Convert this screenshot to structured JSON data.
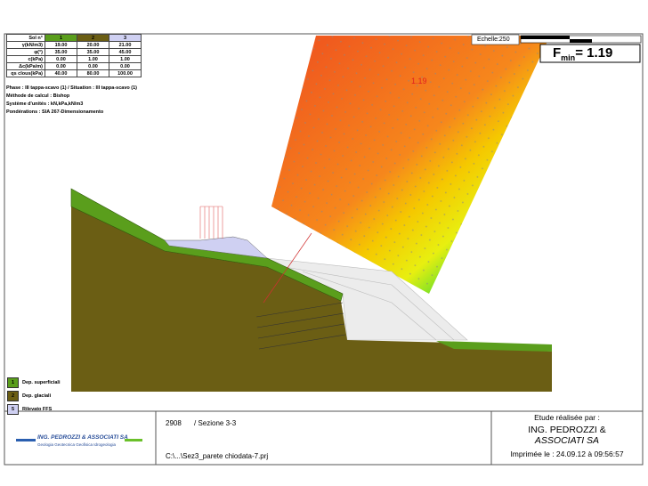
{
  "table": {
    "header": [
      "Sol n°",
      "1",
      "2",
      "3"
    ],
    "rows": [
      [
        "γ(kN/m3)",
        "19.00",
        "20.00",
        "21.00"
      ],
      [
        "φ(°)",
        "35.00",
        "35.00",
        "45.00"
      ],
      [
        "c(kPa)",
        "0.00",
        "1.00",
        "1.00"
      ],
      [
        "Δc(kPa/m)",
        "0.00",
        "0.00",
        "0.00"
      ],
      [
        "qs clous(kPa)",
        "40.00",
        "80.00",
        "100.00"
      ]
    ]
  },
  "info": [
    "Phase : III tappa-scavo (1)  / Situation : III tappa-scavo (1)",
    "Méthode de calcul :  Bishop",
    "Système d'unités : kN,kPa,kN/m3",
    "Pondérations : SIA 267-Dimensionamento"
  ],
  "scale": "Echelle:250",
  "fmin": {
    "symbol": "F",
    "subscript": "min",
    "value": "= 1.19"
  },
  "grid_min_label": "1.19",
  "legend": [
    {
      "num": "1",
      "label": "Dep. superficiali",
      "color": "#5a9e1c"
    },
    {
      "num": "2",
      "label": "Dep. glaciali",
      "color": "#6b5e14"
    },
    {
      "num": "5",
      "label": "Rilevato FFS",
      "color": "#cfd0f2"
    }
  ],
  "footer": {
    "project": "2908",
    "section": "/ Sezione 3-3",
    "file": "C:\\...\\Sez3_parete chiodata-7.prj",
    "logo_name": "ING. PEDROZZI & ASSOCIATI SA",
    "logo_sub": "Geologia  Geotecnica  Geofisica  Idrogeologia",
    "credit_title": "Etude réalisée par :",
    "company_line1": "ING. PEDROZZI &",
    "company_line2": "ASSOCIATI SA",
    "printed": "Imprimée le : 24.09.12 à 09:56:57"
  }
}
